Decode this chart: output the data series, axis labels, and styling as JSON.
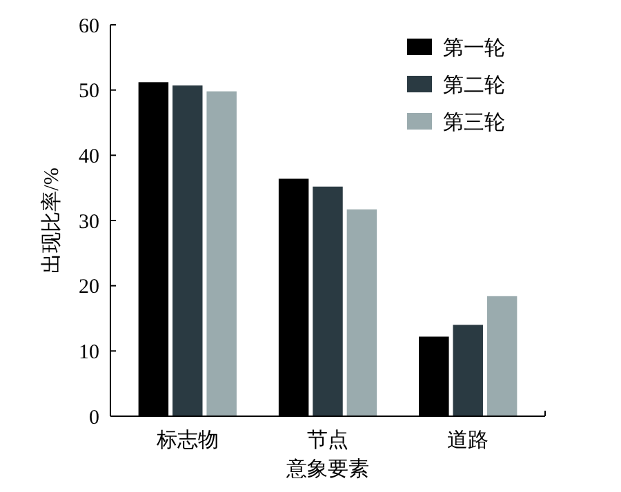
{
  "chart_data": {
    "type": "bar",
    "xlabel": "意象要素",
    "ylabel": "出现比率/%",
    "categories": [
      "标志物",
      "节点",
      "道路"
    ],
    "series": [
      {
        "name": "第一轮",
        "color": "#000000",
        "values": [
          51.2,
          36.4,
          12.2
        ]
      },
      {
        "name": "第二轮",
        "color": "#2a3a42",
        "values": [
          50.7,
          35.2,
          14.0
        ]
      },
      {
        "name": "第三轮",
        "color": "#9aabae",
        "values": [
          49.8,
          31.7,
          18.4
        ]
      }
    ],
    "ylim": [
      0,
      60
    ],
    "yticks": [
      0,
      10,
      20,
      30,
      40,
      50,
      60
    ],
    "legend": "top right"
  }
}
